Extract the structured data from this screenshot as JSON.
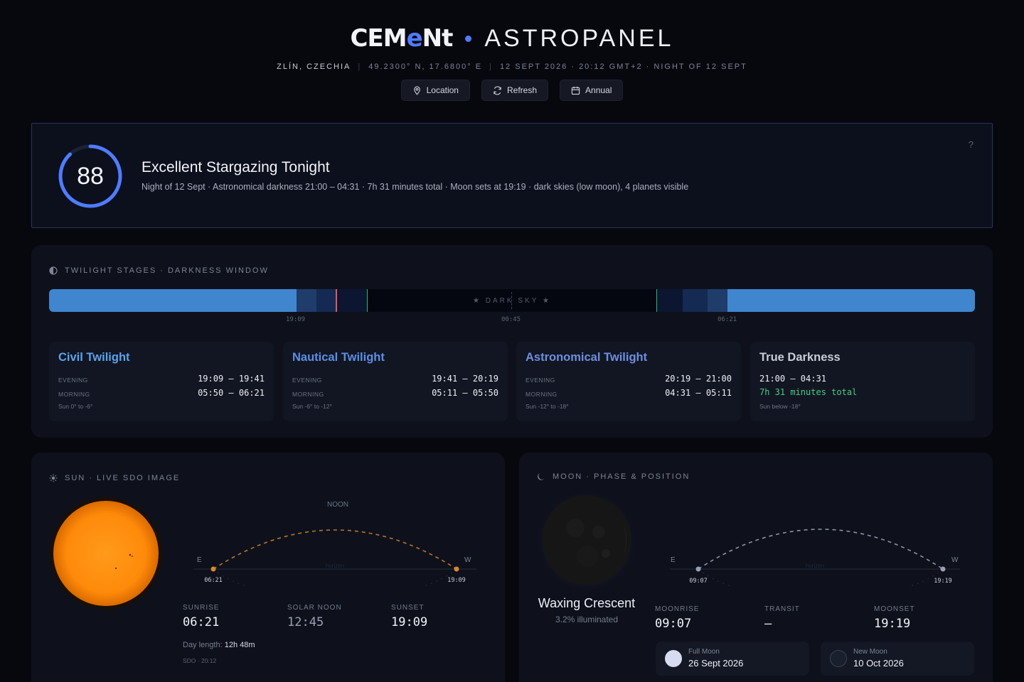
{
  "header": {
    "logo_pre": "CEM",
    "logo_e": "e",
    "logo_post": "Nt",
    "app_name": "ASTROPANEL",
    "location": "ZLÍN, CZECHIA",
    "coords": "49.2300° N, 17.6800° E",
    "datetime": "12 SEPT 2026 · 20:12 GMT+2 · NIGHT OF 12 SEPT",
    "buttons": {
      "location": "Location",
      "refresh": "Refresh",
      "annual": "Annual"
    }
  },
  "score": {
    "value": "88",
    "fraction": 0.88,
    "headline": "Excellent Stargazing Tonight",
    "description": "Night of 12 Sept · Astronomical darkness 21:00 – 04:31 · 7h 31 minutes total · Moon sets at 19:19 · dark skies (low moon), 4 planets visible",
    "help": "?"
  },
  "twilight": {
    "label": "TWILIGHT STAGES · DARKNESS WINDOW",
    "dark_sky_label": "★  DARK SKY  ★",
    "ticks": [
      "19:09",
      "00:45",
      "06:21"
    ],
    "colors": {
      "day": "#3f86cf",
      "civil": "#1f3c6b",
      "nautical": "#152a52",
      "astro": "#0c1630",
      "dark": "#050710",
      "now": "#e4556a",
      "edge": "#2fb56a"
    },
    "cards": [
      {
        "title": "Civil Twilight",
        "color": "#5aa3ee",
        "evening_label": "EVENING",
        "evening": "19:09 – 19:41",
        "morning_label": "MORNING",
        "morning": "05:50 – 06:21",
        "foot": "Sun 0° to -6°"
      },
      {
        "title": "Nautical Twilight",
        "color": "#5b8fe6",
        "evening_label": "EVENING",
        "evening": "19:41 – 20:19",
        "morning_label": "MORNING",
        "morning": "05:11 – 05:50",
        "foot": "Sun -6° to -12°"
      },
      {
        "title": "Astronomical Twilight",
        "color": "#6c8fe0",
        "evening_label": "EVENING",
        "evening": "20:19 – 21:00",
        "morning_label": "MORNING",
        "morning": "04:31 – 05:11",
        "foot": "Sun -12° to -18°"
      },
      {
        "title": "True Darkness",
        "color": "#c8ccd8",
        "range": "21:00 – 04:31",
        "total": "7h 31 minutes total",
        "foot": "Sun below -18°"
      }
    ]
  },
  "sun": {
    "label": "SUN · LIVE SDO IMAGE",
    "noon_label": "NOON",
    "east": "E",
    "west": "W",
    "horizon": "horizon",
    "rise_tick": "06:21",
    "set_tick": "19:09",
    "sunrise_label": "SUNRISE",
    "sunrise": "06:21",
    "noon_time_label": "SOLAR NOON",
    "noon": "12:45",
    "sunset_label": "SUNSET",
    "sunset": "19:09",
    "day_length_label": "Day length:",
    "day_length": "12h 48m",
    "sdo": "SDO · 20:12"
  },
  "moon": {
    "label": "MOON · PHASE & POSITION",
    "phase_name": "Waxing Crescent",
    "illumination": "3.2% illuminated",
    "east": "E",
    "west": "W",
    "horizon": "horizon",
    "rise_tick": "09:07",
    "set_tick": "19:19",
    "moonrise_label": "MOONRISE",
    "moonrise": "09:07",
    "transit_label": "TRANSIT",
    "transit": "–",
    "moonset_label": "MOONSET",
    "moonset": "19:19",
    "full_label": "Full Moon",
    "full_date": "26 Sept 2026",
    "new_label": "New Moon",
    "new_date": "10 Oct 2026"
  }
}
